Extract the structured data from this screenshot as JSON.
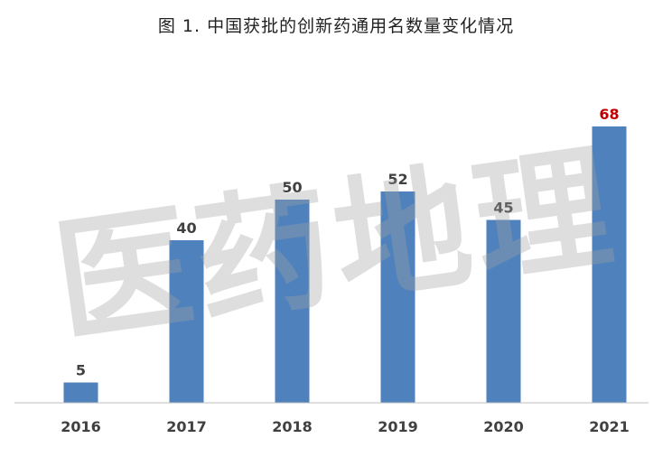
{
  "watermark": "医药地理",
  "chart_data": {
    "type": "bar",
    "title": "图 1. 中国获批的创新药通用名数量变化情况",
    "categories": [
      "2016",
      "2017",
      "2018",
      "2019",
      "2020",
      "2021"
    ],
    "values": [
      5,
      40,
      50,
      52,
      45,
      68
    ],
    "xlabel": "",
    "ylabel": "",
    "ylim": [
      0,
      72
    ],
    "grid": false,
    "legend": "none",
    "bar_color": "#4f81bd",
    "highlight_index": 5,
    "highlight_label_color": "#c00000"
  }
}
